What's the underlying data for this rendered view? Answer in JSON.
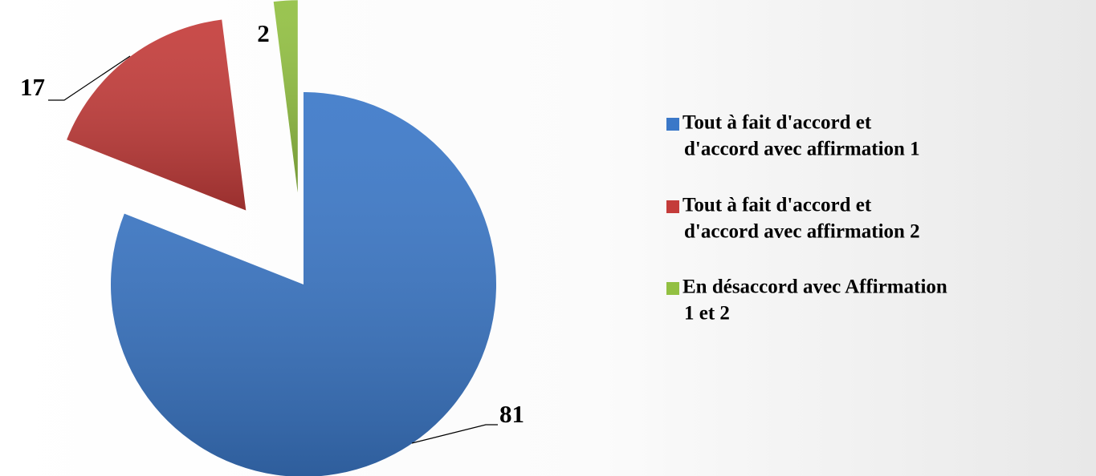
{
  "chart_data": {
    "type": "pie",
    "categories": [
      "Tout à fait d'accord et d'accord avec affirmation 1",
      "Tout à fait d'accord et d'accord avec affirmation 2",
      "En désaccord avec Affirmation 1 et 2"
    ],
    "legend_lines": [
      [
        "Tout à fait d'accord et",
        "d'accord avec affirmation 1"
      ],
      [
        "Tout à fait d'accord et",
        "d'accord avec affirmation 2"
      ],
      [
        "En désaccord avec Affirmation",
        "1 et 2"
      ]
    ],
    "values": [
      81,
      17,
      2
    ],
    "colors": [
      "#3b78c8",
      "#c43c3a",
      "#92c042"
    ],
    "legend": "right"
  }
}
